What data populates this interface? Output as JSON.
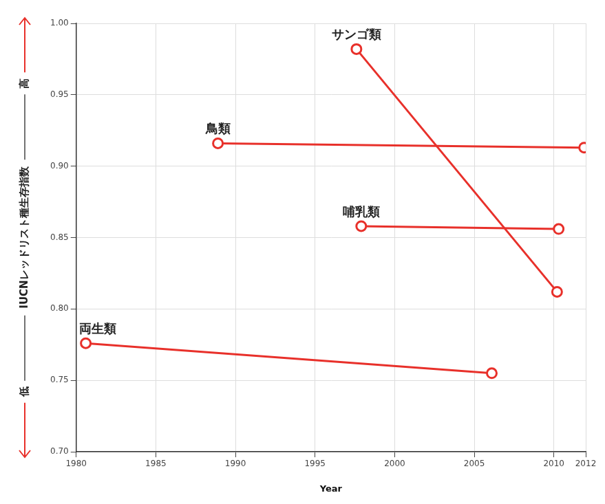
{
  "chart_data": {
    "type": "line",
    "xlabel": "Year",
    "ylabel": "IUCNレッドリスト種生存指数",
    "ylabel_low": "低",
    "ylabel_high": "高",
    "xlim": [
      1980,
      2012
    ],
    "xticks": [
      1980,
      1985,
      1990,
      1995,
      2000,
      2005,
      2010,
      2012
    ],
    "ylim": [
      0.7,
      1.0
    ],
    "yticks": [
      {
        "value": 0.7,
        "label": "0.70"
      },
      0.75,
      {
        "value": 0.8,
        "label": "0.80"
      },
      0.85,
      {
        "value": 0.9,
        "label": "0.90"
      },
      0.95,
      {
        "value": 1.0,
        "label": "1.00"
      }
    ],
    "grid": true,
    "marker": "open_circle",
    "series": [
      {
        "name": "サンゴ類",
        "color": "#e8302a",
        "x": [
          1997.6,
          2010.2
        ],
        "values": [
          0.982,
          0.812
        ]
      },
      {
        "name": "鳥類",
        "color": "#e8302a",
        "x": [
          1988.9,
          2011.9
        ],
        "values": [
          0.916,
          0.913
        ]
      },
      {
        "name": "哺乳類",
        "color": "#e8302a",
        "x": [
          1997.9,
          2010.3
        ],
        "values": [
          0.858,
          0.856
        ]
      },
      {
        "name": "両生類",
        "color": "#e8302a",
        "x": [
          1980.6,
          2006.1
        ],
        "values": [
          0.776,
          0.755
        ]
      }
    ]
  }
}
